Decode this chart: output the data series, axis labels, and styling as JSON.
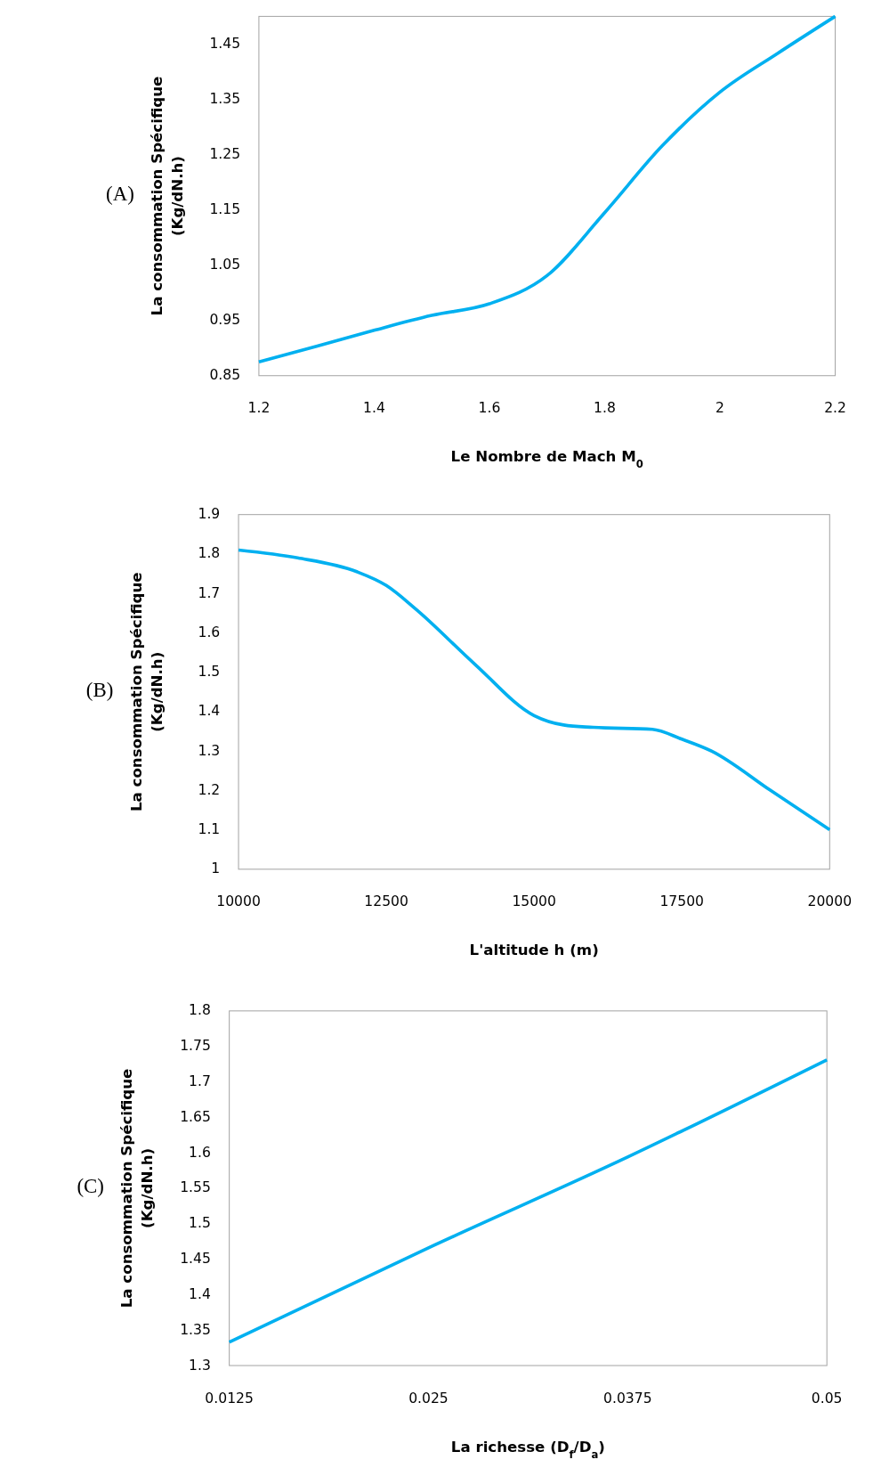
{
  "chart_data": [
    {
      "type": "line",
      "title": "(A)",
      "xlabel": "Le Nombre de Mach M$_{0}$",
      "ylabel": "La consommation Spécifique\n(Kg/dN.h)",
      "x": [
        1.2,
        1.3,
        1.4,
        1.5,
        1.6,
        1.7,
        1.8,
        1.9,
        2.0,
        2.1,
        2.2
      ],
      "series": [
        {
          "color": "#00b0f0",
          "values": [
            0.875,
            0.903,
            0.932,
            0.959,
            0.98,
            1.031,
            1.145,
            1.266,
            1.363,
            1.433,
            1.5
          ]
        }
      ],
      "xlim": [
        1.2,
        2.2
      ],
      "xticks": [
        1.2,
        1.4,
        1.6,
        1.8,
        2,
        2.2
      ],
      "ylim": [
        0.85,
        1.5
      ],
      "yticks": [
        0.85,
        0.95,
        1.05,
        1.15,
        1.25,
        1.35,
        1.45
      ],
      "grid": false
    },
    {
      "type": "line",
      "title": "(B)",
      "xlabel": "L'altitude h (m)",
      "ylabel": "La consommation Spécifique\n(Kg/dN.h)",
      "x": [
        10000,
        11000,
        12000,
        12500,
        13000,
        14000,
        15000,
        15500,
        16000,
        17000,
        17500,
        18000,
        19000,
        20000
      ],
      "series": [
        {
          "color": "#00b0f0",
          "values": [
            1.81,
            1.79,
            1.755,
            1.72,
            1.66,
            1.52,
            1.39,
            1.366,
            1.36,
            1.355,
            1.33,
            1.3,
            1.2,
            1.1
          ]
        }
      ],
      "xlim": [
        10000,
        20000
      ],
      "xticks": [
        10000,
        12500,
        15000,
        17500,
        20000
      ],
      "ylim": [
        1,
        1.9
      ],
      "yticks": [
        1,
        1.1,
        1.2,
        1.3,
        1.4,
        1.5,
        1.6,
        1.7,
        1.8,
        1.9
      ],
      "grid": false
    },
    {
      "type": "line",
      "title": "(C)",
      "xlabel": "La richesse (D$_{f}$/D$_{a}$)",
      "ylabel": "La consommation Spécifique\n(Kg/dN.h)",
      "x": [
        0.0125,
        0.025,
        0.0375,
        0.05
      ],
      "series": [
        {
          "color": "#00b0f0",
          "values": [
            1.333,
            1.466,
            1.594,
            1.731
          ]
        }
      ],
      "xlim": [
        0.0125,
        0.05
      ],
      "xticks": [
        0.0125,
        0.025,
        0.0375,
        0.05
      ],
      "ylim": [
        1.3,
        1.8
      ],
      "yticks": [
        1.3,
        1.35,
        1.4,
        1.45,
        1.5,
        1.55,
        1.6,
        1.65,
        1.7,
        1.75,
        1.8
      ],
      "grid": false
    }
  ]
}
